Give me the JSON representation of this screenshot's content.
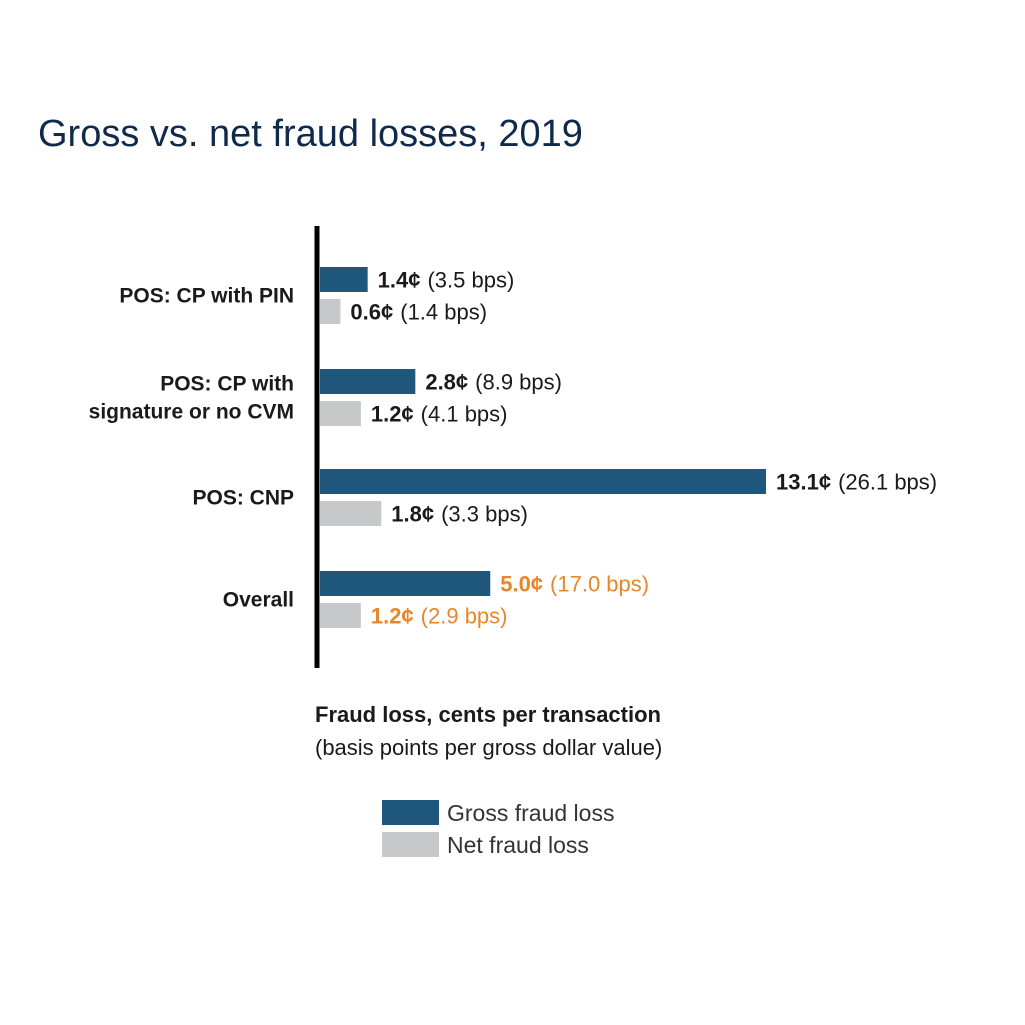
{
  "chart_data": {
    "type": "bar",
    "orientation": "horizontal",
    "title": "Gross vs. net fraud losses, 2019",
    "categories": [
      [
        "POS: CP with PIN"
      ],
      [
        "POS: CP with",
        "signature or no CVM"
      ],
      [
        "POS: CNP"
      ],
      [
        "Overall"
      ]
    ],
    "highlight_category_index": 3,
    "series": [
      {
        "name": "Gross fraud loss",
        "color": "#1f567c",
        "values": [
          1.4,
          2.8,
          13.1,
          5.0
        ],
        "value_labels": [
          "1.4¢",
          "2.8¢",
          "13.1¢",
          "5.0¢"
        ],
        "secondary_labels": [
          "(3.5 bps)",
          "(8.9 bps)",
          "(26.1 bps)",
          "(17.0 bps)"
        ]
      },
      {
        "name": "Net fraud loss",
        "color": "#c7c8ca",
        "values": [
          0.6,
          1.2,
          1.8,
          1.2
        ],
        "value_labels": [
          "0.6¢",
          "1.2¢",
          "1.8¢",
          "1.2¢"
        ],
        "secondary_labels": [
          "(1.4 bps)",
          "(4.1 bps)",
          "(3.3 bps)",
          "(2.9 bps)"
        ]
      }
    ],
    "xlabel": "Fraud loss, cents per transaction",
    "xlabel_sub": "(basis points per gross dollar value)",
    "xlim": [
      0,
      13.1
    ],
    "grid": false,
    "legend_position": "bottom",
    "colors": {
      "title": "#102a4c",
      "text": "#1a1a1a",
      "highlight": "#e8862a",
      "axis": "#000000"
    }
  }
}
